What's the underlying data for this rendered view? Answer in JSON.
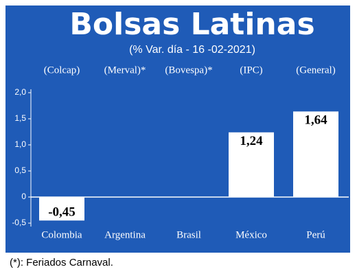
{
  "chart_data": {
    "type": "bar",
    "title": "Bolsas Latinas",
    "subtitle": "(% Var. día - 16 -02-2021)",
    "index_labels": [
      "(Colcap)",
      "(Merval)*",
      "(Bovespa)*",
      "(IPC)",
      "(General)"
    ],
    "categories": [
      "Colombia",
      "Argentina",
      "Brasil",
      "México",
      "Perú"
    ],
    "values": [
      -0.45,
      null,
      null,
      1.24,
      1.64
    ],
    "value_labels": [
      "-0,45",
      null,
      null,
      "1,24",
      "1,64"
    ],
    "color": "#ffffff",
    "ylim": [
      -0.5,
      2.0
    ],
    "yticks": [
      {
        "value": -0.5,
        "label": "-0,5"
      },
      0,
      {
        "value": 0.5,
        "label": "0,5"
      },
      {
        "value": 1.0,
        "label": "1,0"
      },
      {
        "value": 1.5,
        "label": "1,5"
      },
      {
        "value": 2.0,
        "label": "2,0"
      }
    ],
    "footnote": "(*): Feriados Carnaval."
  }
}
